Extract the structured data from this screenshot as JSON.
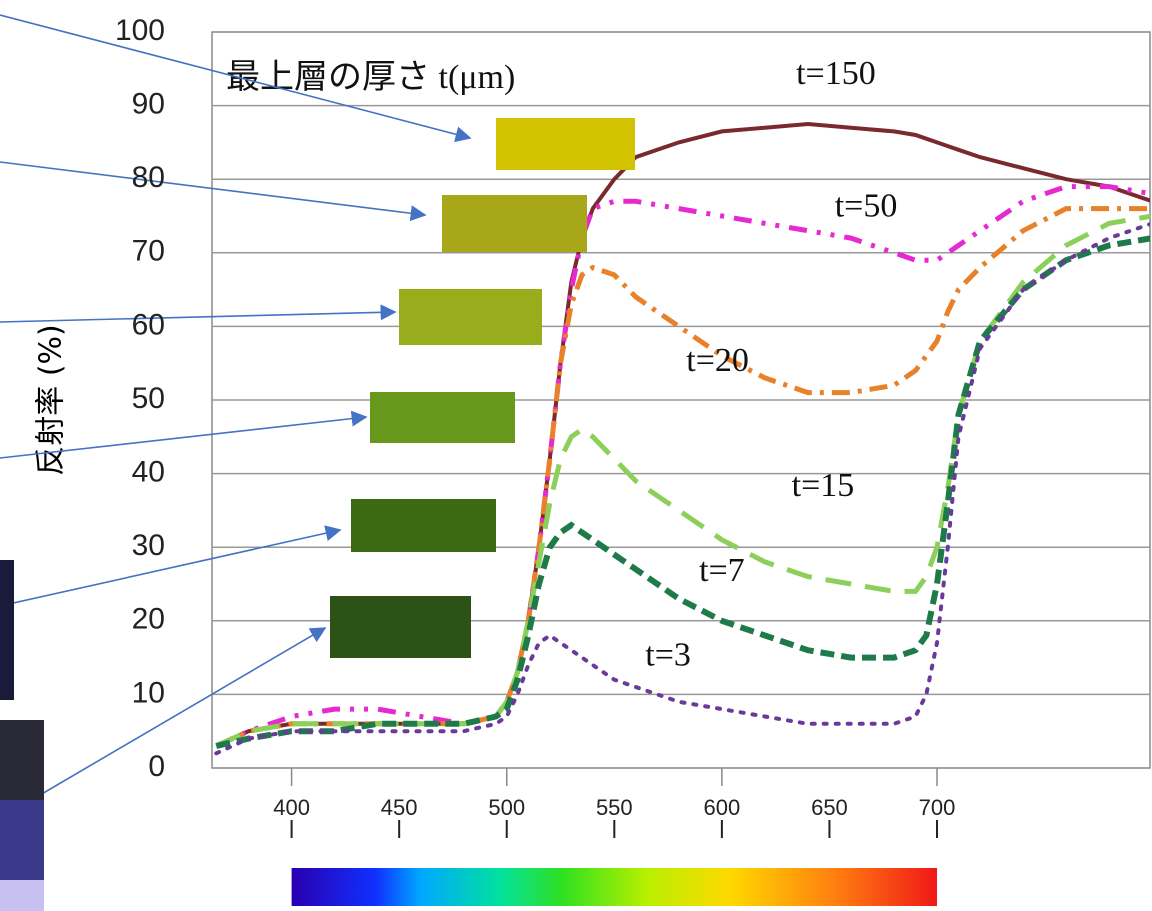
{
  "chart_data": {
    "type": "line",
    "title": "最上層の厚さ t(μm)",
    "y_label": "反射率 (%)",
    "x": [
      365,
      380,
      400,
      420,
      440,
      460,
      480,
      495,
      500,
      505,
      510,
      515,
      520,
      525,
      530,
      535,
      540,
      550,
      560,
      580,
      600,
      620,
      640,
      660,
      680,
      690,
      695,
      700,
      705,
      710,
      720,
      740,
      760,
      780,
      800
    ],
    "series": [
      {
        "name": "t=150",
        "color": "#7a2a2e",
        "style": "solid",
        "values": [
          3,
          5,
          6,
          6,
          6,
          6,
          6,
          7,
          9,
          13,
          20,
          30,
          42,
          55,
          66,
          72,
          76,
          80,
          83,
          85,
          86.5,
          87,
          87.5,
          87,
          86.5,
          86,
          85.5,
          85,
          84.5,
          84,
          83,
          81.5,
          80,
          79,
          77
        ]
      },
      {
        "name": "t=50",
        "color": "#e62ad0",
        "style": "dashdotdot",
        "values": [
          3,
          5,
          7,
          8,
          8,
          7,
          6,
          7,
          9,
          13,
          20,
          30,
          42,
          55,
          65,
          72,
          76,
          77,
          77,
          76,
          75,
          74,
          73,
          72,
          70,
          69,
          69,
          69,
          70,
          71,
          73,
          77,
          79,
          79,
          78
        ]
      },
      {
        "name": "t=20",
        "color": "#e8812a",
        "style": "dashdot",
        "values": [
          3,
          5,
          6,
          6,
          6,
          6,
          6,
          7,
          9,
          13,
          20,
          30,
          42,
          55,
          63,
          67,
          68,
          67,
          64,
          60,
          56,
          53,
          51,
          51,
          52,
          54,
          56,
          58,
          62,
          65,
          68,
          73,
          76,
          76,
          76
        ]
      },
      {
        "name": "t=15",
        "color": "#8ccf5a",
        "style": "longdash",
        "values": [
          3,
          5,
          6,
          6,
          6,
          6,
          6,
          7,
          9,
          13,
          20,
          28,
          36,
          42,
          45,
          46,
          45,
          42,
          39,
          35,
          31,
          28,
          26,
          25,
          24,
          24,
          26,
          30,
          38,
          48,
          58,
          66,
          71,
          74,
          75
        ]
      },
      {
        "name": "t=7",
        "color": "#1f7a4a",
        "style": "dash",
        "values": [
          3,
          4,
          5,
          5,
          6,
          6,
          6,
          7,
          8,
          12,
          18,
          25,
          30,
          32,
          33,
          32,
          31,
          29,
          27,
          23,
          20,
          18,
          16,
          15,
          15,
          16,
          18,
          25,
          36,
          48,
          58,
          65,
          69,
          71,
          72
        ]
      },
      {
        "name": "t=3",
        "color": "#6a3a9a",
        "style": "dot",
        "values": [
          2,
          4,
          5,
          5,
          5,
          5,
          5,
          6,
          7,
          10,
          14,
          17,
          18,
          17,
          16,
          15,
          14,
          12,
          11,
          9,
          8,
          7,
          6,
          6,
          6,
          7,
          10,
          17,
          30,
          45,
          57,
          65,
          69,
          72,
          74
        ]
      }
    ],
    "xlim": [
      363,
      799
    ],
    "ylim": [
      0,
      100
    ],
    "xticks": [
      400,
      450,
      500,
      550,
      600,
      650,
      700
    ],
    "yticks": [
      0,
      10,
      20,
      30,
      40,
      50,
      60,
      70,
      80,
      90,
      100
    ],
    "grid": true
  }
}
